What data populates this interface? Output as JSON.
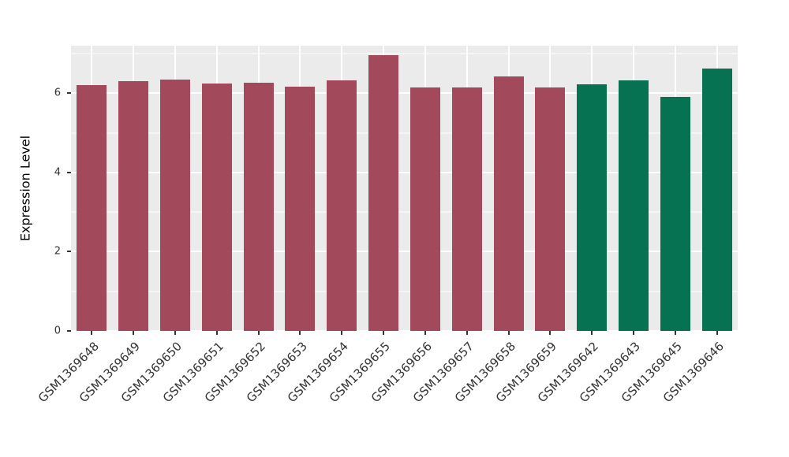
{
  "chart_data": {
    "type": "bar",
    "title": "",
    "xlabel": "",
    "ylabel": "Expression Level",
    "ylim": [
      0,
      7.2
    ],
    "yticks": [
      0,
      2,
      4,
      6
    ],
    "yticks_minor": [
      1,
      3,
      5,
      7
    ],
    "grid": true,
    "legend_position": "none",
    "categories": [
      "GSM1369648",
      "GSM1369649",
      "GSM1369650",
      "GSM1369651",
      "GSM1369652",
      "GSM1369653",
      "GSM1369654",
      "GSM1369655",
      "GSM1369656",
      "GSM1369657",
      "GSM1369658",
      "GSM1369659",
      "GSM1369642",
      "GSM1369643",
      "GSM1369645",
      "GSM1369646"
    ],
    "values": [
      6.21,
      6.3,
      6.35,
      6.24,
      6.27,
      6.17,
      6.33,
      6.97,
      6.15,
      6.15,
      6.42,
      6.15,
      6.22,
      6.33,
      5.9,
      6.62
    ],
    "bar_colors": [
      "#A2495B",
      "#A2495B",
      "#A2495B",
      "#A2495B",
      "#A2495B",
      "#A2495B",
      "#A2495B",
      "#A2495B",
      "#A2495B",
      "#A2495B",
      "#A2495B",
      "#A2495B",
      "#067251",
      "#067251",
      "#067251",
      "#067251"
    ],
    "group_colors": {
      "maroon_group": "#A2495B",
      "green_group": "#067251"
    },
    "style": {
      "panel_bg": "#EBEBEB",
      "grid_color": "#FFFFFF",
      "tick_color": "#333333",
      "outer_bg": "#FFFFFF"
    }
  }
}
